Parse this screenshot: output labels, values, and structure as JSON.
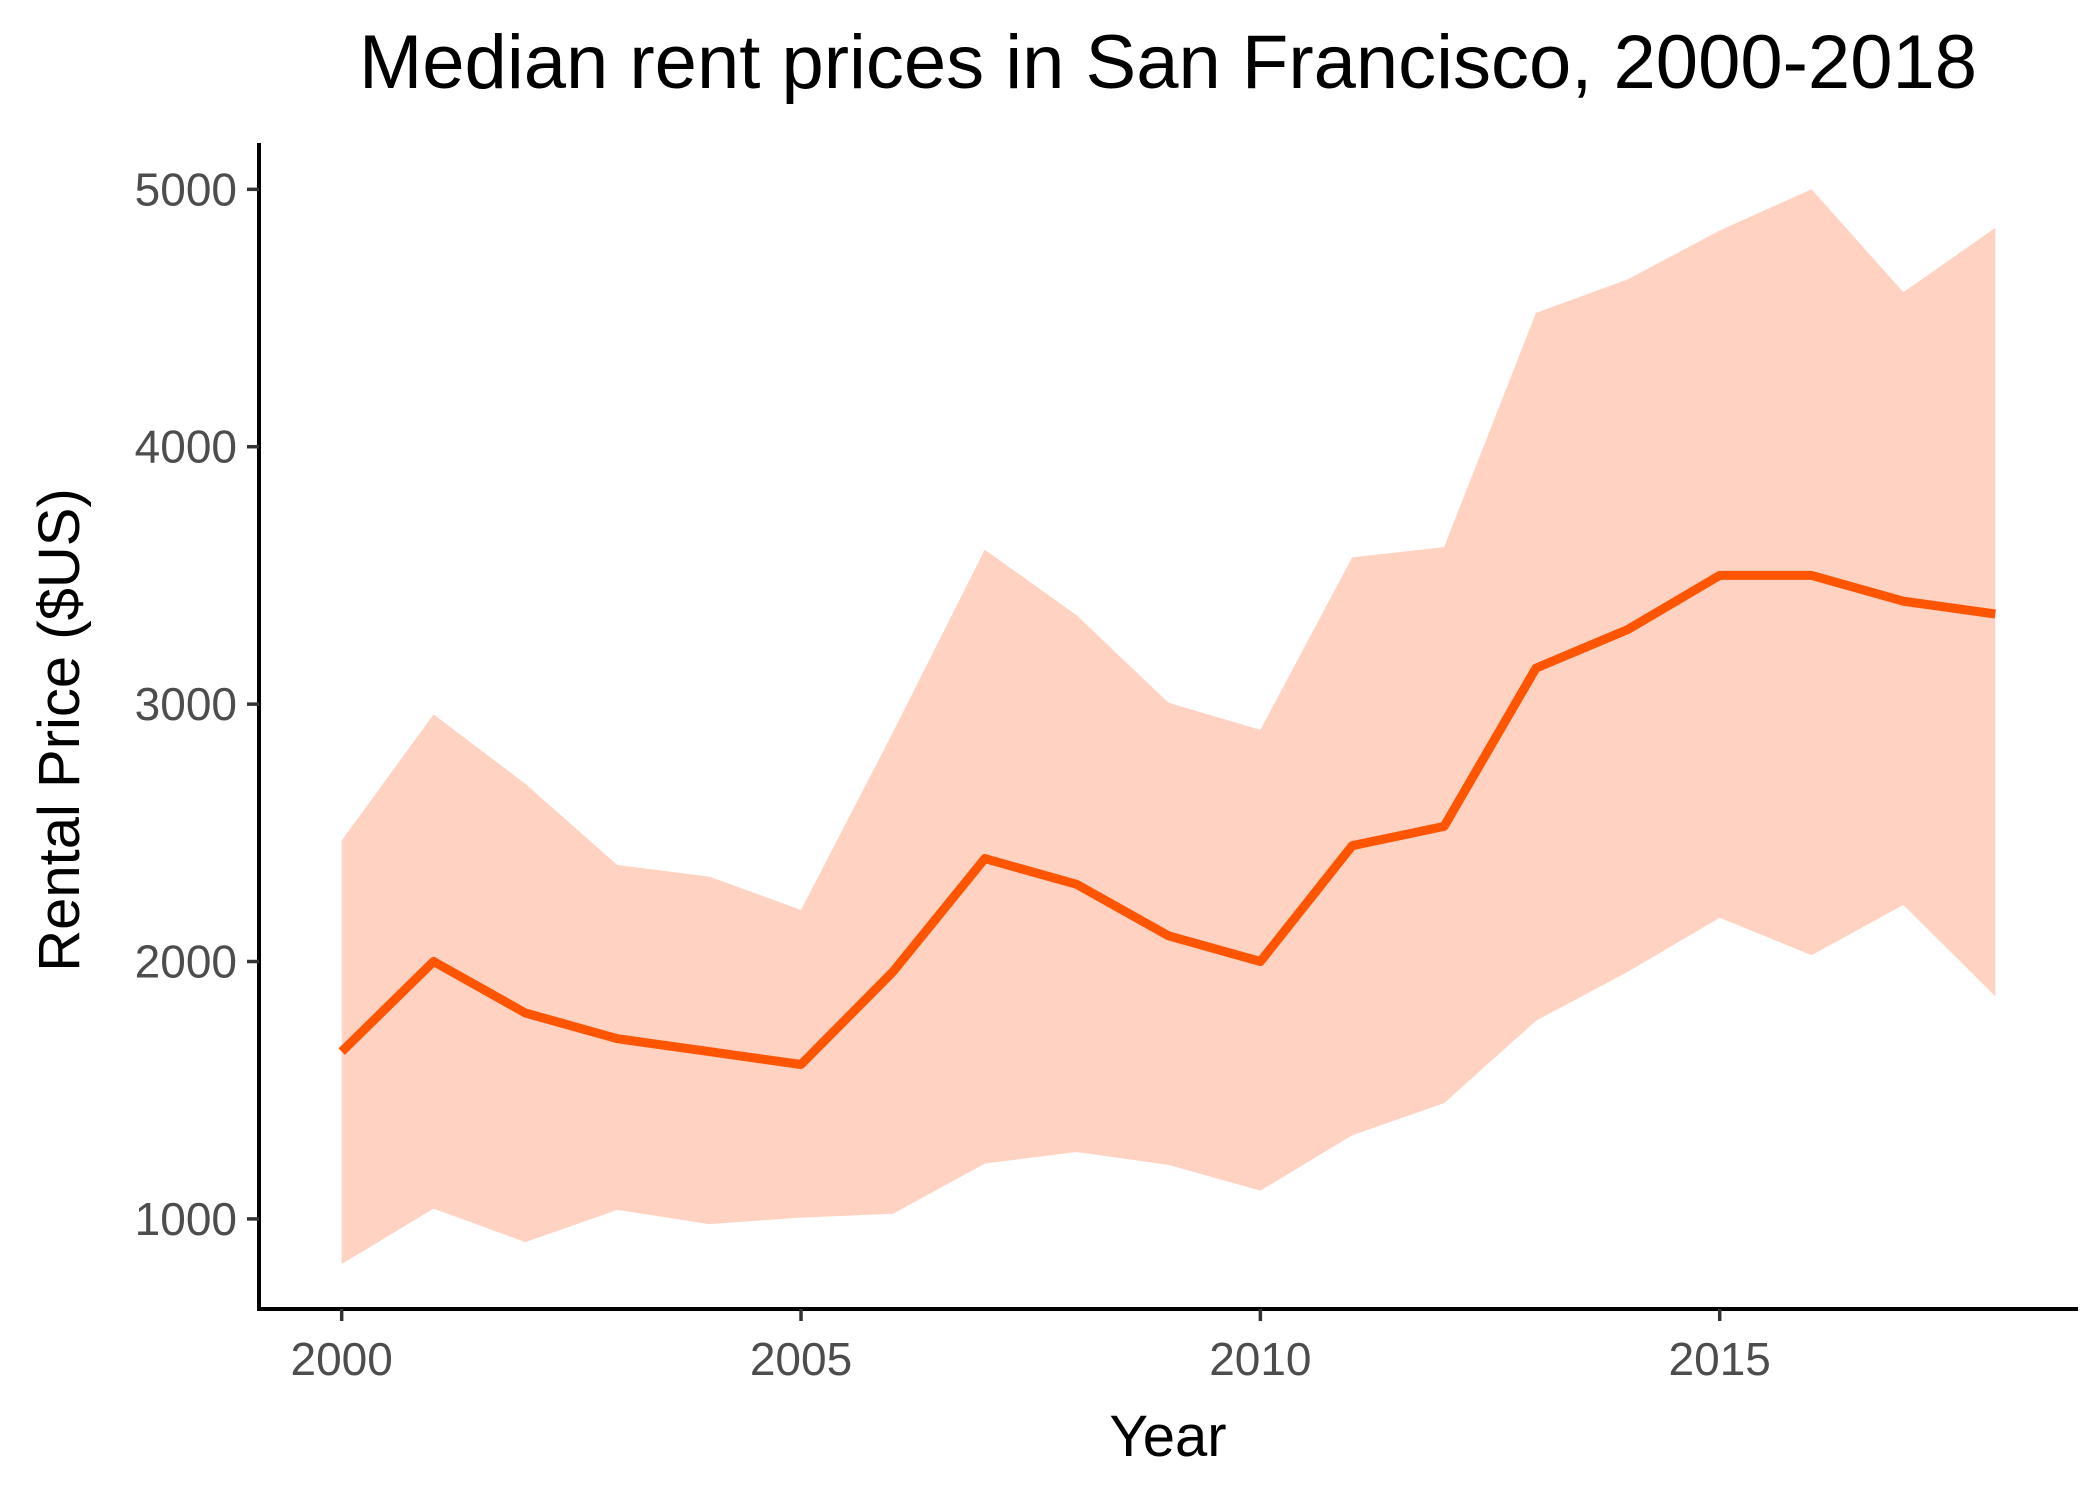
{
  "chart_data": {
    "type": "line",
    "title": "Median rent prices in San Francisco, 2000-2018",
    "xlabel": "Year",
    "ylabel": "Rental Price ($US)",
    "x": [
      2000,
      2001,
      2002,
      2003,
      2004,
      2005,
      2006,
      2007,
      2008,
      2009,
      2010,
      2011,
      2012,
      2013,
      2014,
      2015,
      2016,
      2017,
      2018
    ],
    "series": [
      {
        "kind": "line",
        "color": "#FF5500",
        "values": [
          1650,
          2000,
          1800,
          1700,
          1650,
          1600,
          1960,
          2400,
          2300,
          2100,
          2000,
          2450,
          2525,
          3140,
          3290,
          3500,
          3500,
          3400,
          3350
        ]
      },
      {
        "kind": "ribbon",
        "color": "#FFD2C1",
        "lower": [
          825,
          1040,
          910,
          1035,
          980,
          1005,
          1020,
          1215,
          1260,
          1210,
          1110,
          1325,
          1450,
          1770,
          1960,
          2170,
          2025,
          2220,
          1865
        ],
        "upper": [
          2470,
          2960,
          2690,
          2375,
          2330,
          2200,
          2890,
          3600,
          3345,
          3005,
          2900,
          3570,
          3610,
          4520,
          4650,
          4840,
          5000,
          4600,
          4850
        ]
      }
    ],
    "xlim": [
      1999.1,
      2018.9
    ],
    "ylim": [
      650,
      5180
    ],
    "xticks": [
      "2000",
      "2005",
      "2010",
      "2015"
    ],
    "yticks": [
      "1000",
      "2000",
      "3000",
      "4000",
      "5000"
    ],
    "grid": false,
    "legend": "none"
  }
}
